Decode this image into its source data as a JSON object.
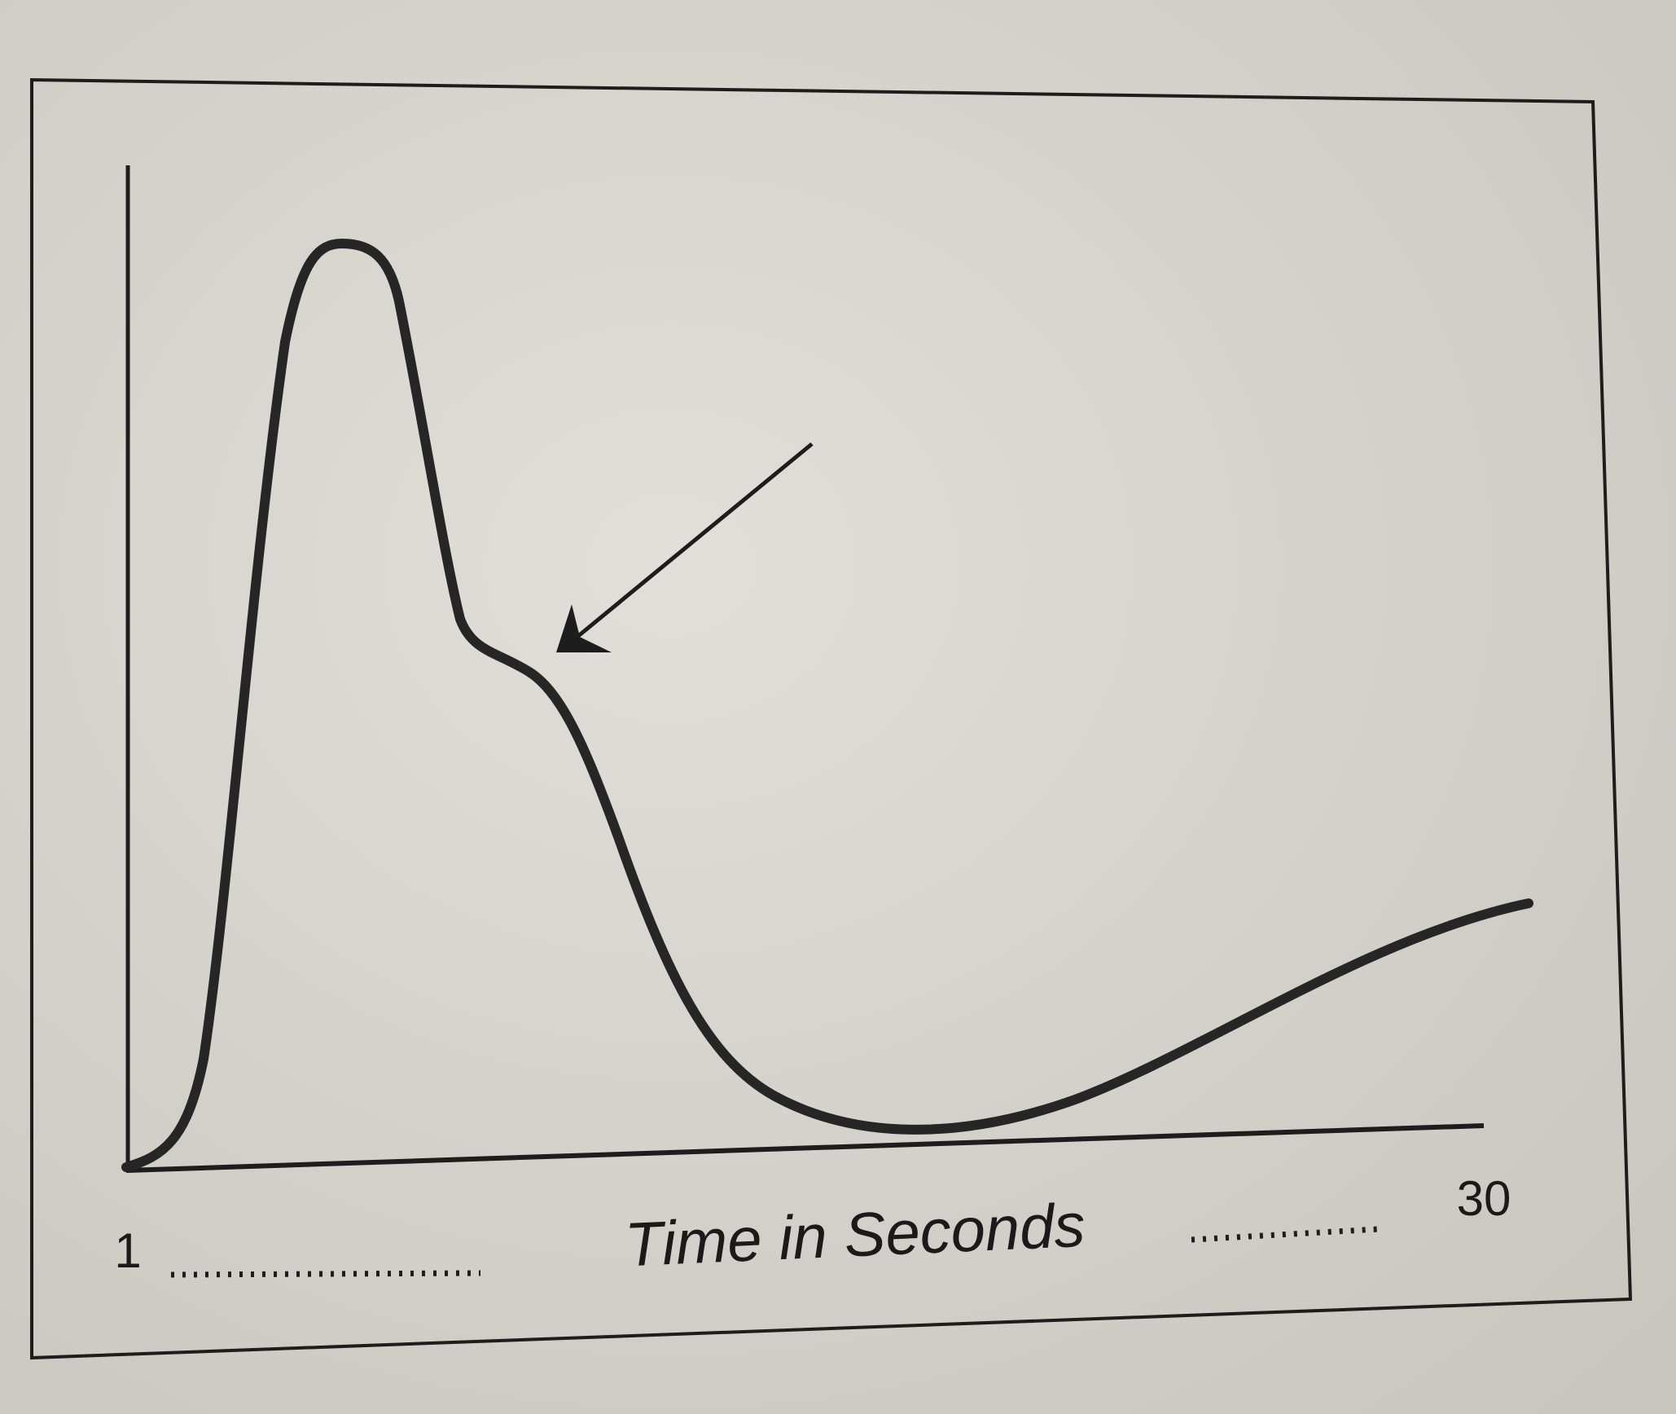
{
  "chart_data": {
    "type": "line",
    "xlabel": "Time in Seconds",
    "xlim": [
      1,
      30
    ],
    "xticks": [
      1,
      30
    ]
  }
}
